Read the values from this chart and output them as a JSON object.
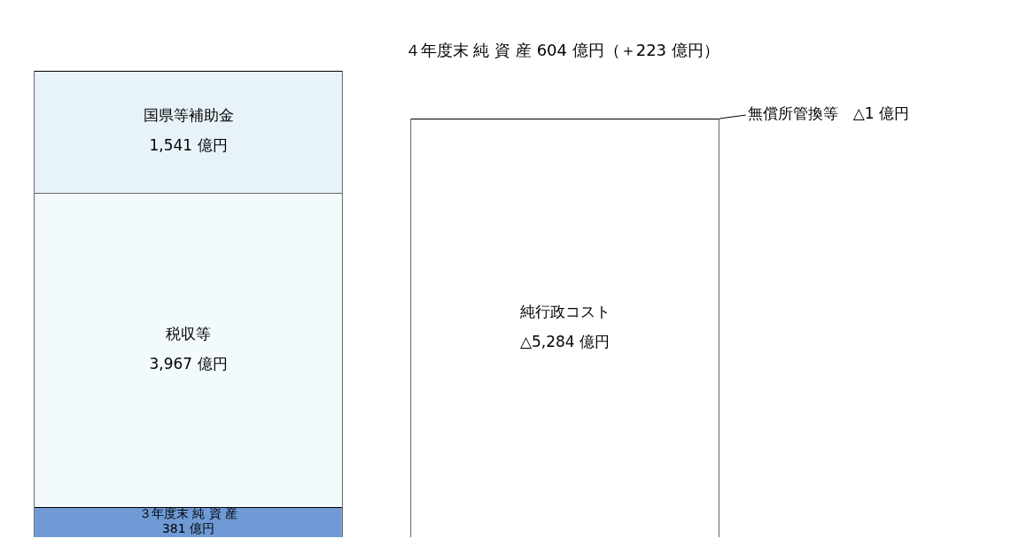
{
  "chart_data": {
    "type": "bar",
    "stacked": true,
    "categories": [
      null,
      null
    ],
    "tick_labels": false,
    "legend": false,
    "series": [
      {
        "name": "３年度末 純 資 産",
        "color": "#6f9ad6",
        "values": [
          381,
          null
        ],
        "value_labels": [
          "381 億円",
          null
        ]
      },
      {
        "name": "税収等",
        "color": "#f3fafd",
        "values": [
          3967,
          null
        ],
        "value_labels": [
          "3,967 億円",
          null
        ]
      },
      {
        "name": "国県等補助金",
        "color": "#e8f3f9",
        "values": [
          1541,
          null
        ],
        "value_labels": [
          "1,541 億円",
          null
        ]
      },
      {
        "name": "純行政コスト",
        "color": "#ffffff",
        "values": [
          null,
          5284
        ],
        "value_labels": [
          null,
          "△5,284 億円"
        ]
      },
      {
        "name": "無償所管換等",
        "color": "#dcf0f7",
        "values": [
          null,
          1
        ],
        "value_labels": [
          null,
          "△1 億円"
        ]
      }
    ],
    "annotations": [
      "４年度末 純 資 産 604 億円（＋223 億円）"
    ]
  }
}
